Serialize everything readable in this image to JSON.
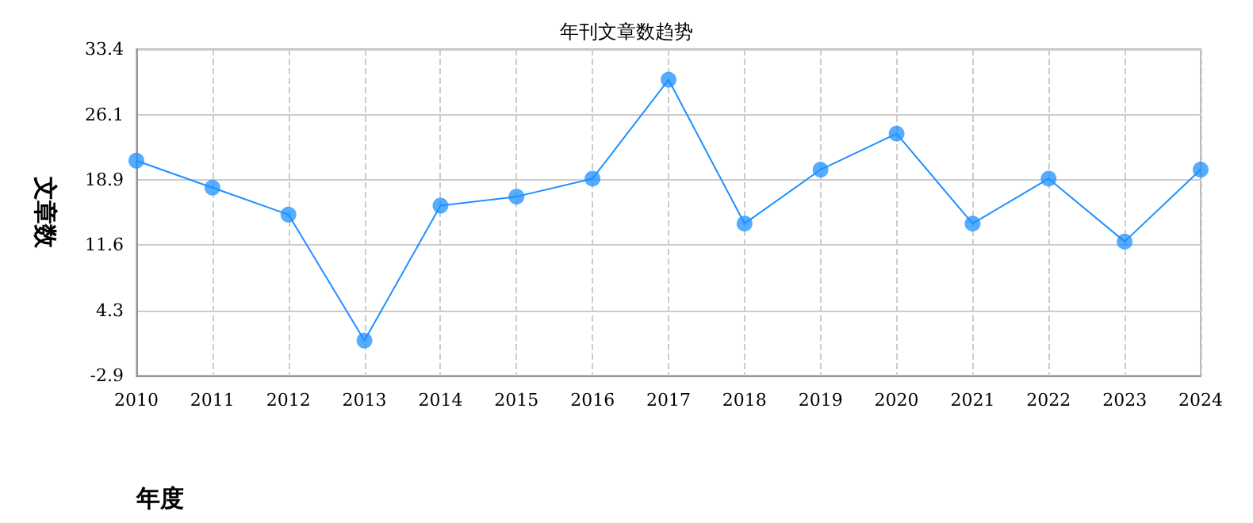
{
  "chart_data": {
    "type": "line",
    "title": "年刊文章数趋势",
    "xlabel": "年度",
    "ylabel": "文章数",
    "categories": [
      "2010",
      "2011",
      "2012",
      "2013",
      "2014",
      "2015",
      "2016",
      "2017",
      "2018",
      "2019",
      "2020",
      "2021",
      "2022",
      "2023",
      "2024"
    ],
    "series": [
      {
        "color": "#1e90ff",
        "values": [
          21,
          18,
          15,
          1,
          16,
          17,
          19,
          30,
          14,
          20,
          24,
          14,
          19,
          12,
          20
        ]
      }
    ],
    "ylim": [
      -2.9,
      33.4
    ],
    "yticks": [
      -2.9,
      4.3,
      11.6,
      18.9,
      26.1,
      33.4
    ],
    "grid": true,
    "marker": "circle",
    "line_style": "solid"
  }
}
